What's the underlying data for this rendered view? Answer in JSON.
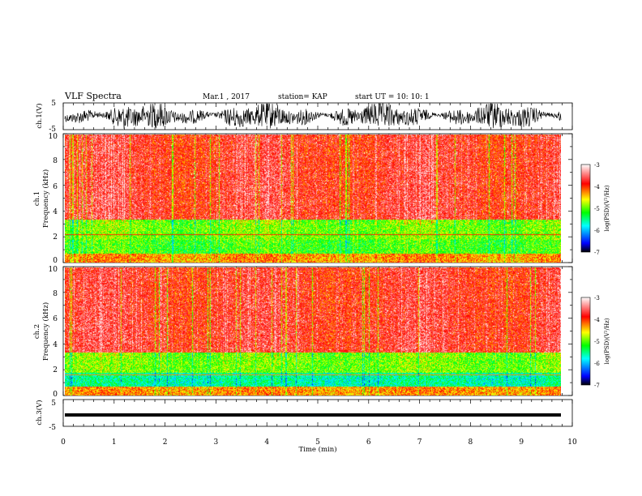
{
  "header": {
    "title": "VLF Spectra",
    "date": "Mar.1  , 2017",
    "station": "station= KAP",
    "start": "start  UT =   10: 10: 1"
  },
  "chart_data": [
    {
      "type": "line",
      "panel": "ch1-waveform",
      "ylabel": "ch.1(V)",
      "ylim": [
        -5,
        5
      ],
      "y_ticks": [
        "5",
        "-5"
      ],
      "xlim": [
        0,
        10
      ]
    },
    {
      "type": "heatmap",
      "panel": "ch1-spectrogram",
      "ylabel": "ch.1\nFrequency  (kHz)",
      "ylim": [
        0,
        10
      ],
      "y_ticks": [
        "0",
        "2",
        "4",
        "6",
        "8",
        "10"
      ],
      "xlim": [
        0,
        10
      ],
      "colorbar": {
        "label": "log(PSD)(V²/Hz)",
        "range": [
          -7,
          -3
        ],
        "ticks": [
          "-3",
          "-4",
          "-5",
          "-6",
          "-7"
        ]
      }
    },
    {
      "type": "heatmap",
      "panel": "ch2-spectrogram",
      "ylabel": "ch.2\nFrequency  (kHz)",
      "ylim": [
        0,
        10
      ],
      "y_ticks": [
        "0",
        "2",
        "4",
        "6",
        "8",
        "10"
      ],
      "xlim": [
        0,
        10
      ],
      "colorbar": {
        "label": "log(PSD)(V²/Hz)",
        "range": [
          -7,
          -3
        ],
        "ticks": [
          "-3",
          "-4",
          "-5",
          "-6",
          "-7"
        ]
      }
    },
    {
      "type": "line",
      "panel": "ch3-waveform",
      "ylabel": "ch.3(V)",
      "ylim": [
        -5,
        5
      ],
      "y_ticks": [
        "5",
        "-5"
      ],
      "xlim": [
        0,
        10
      ],
      "x_ticks": [
        "0",
        "1",
        "2",
        "3",
        "4",
        "5",
        "6",
        "7",
        "8",
        "9",
        "10"
      ],
      "xlabel": "Time  (min)"
    }
  ]
}
